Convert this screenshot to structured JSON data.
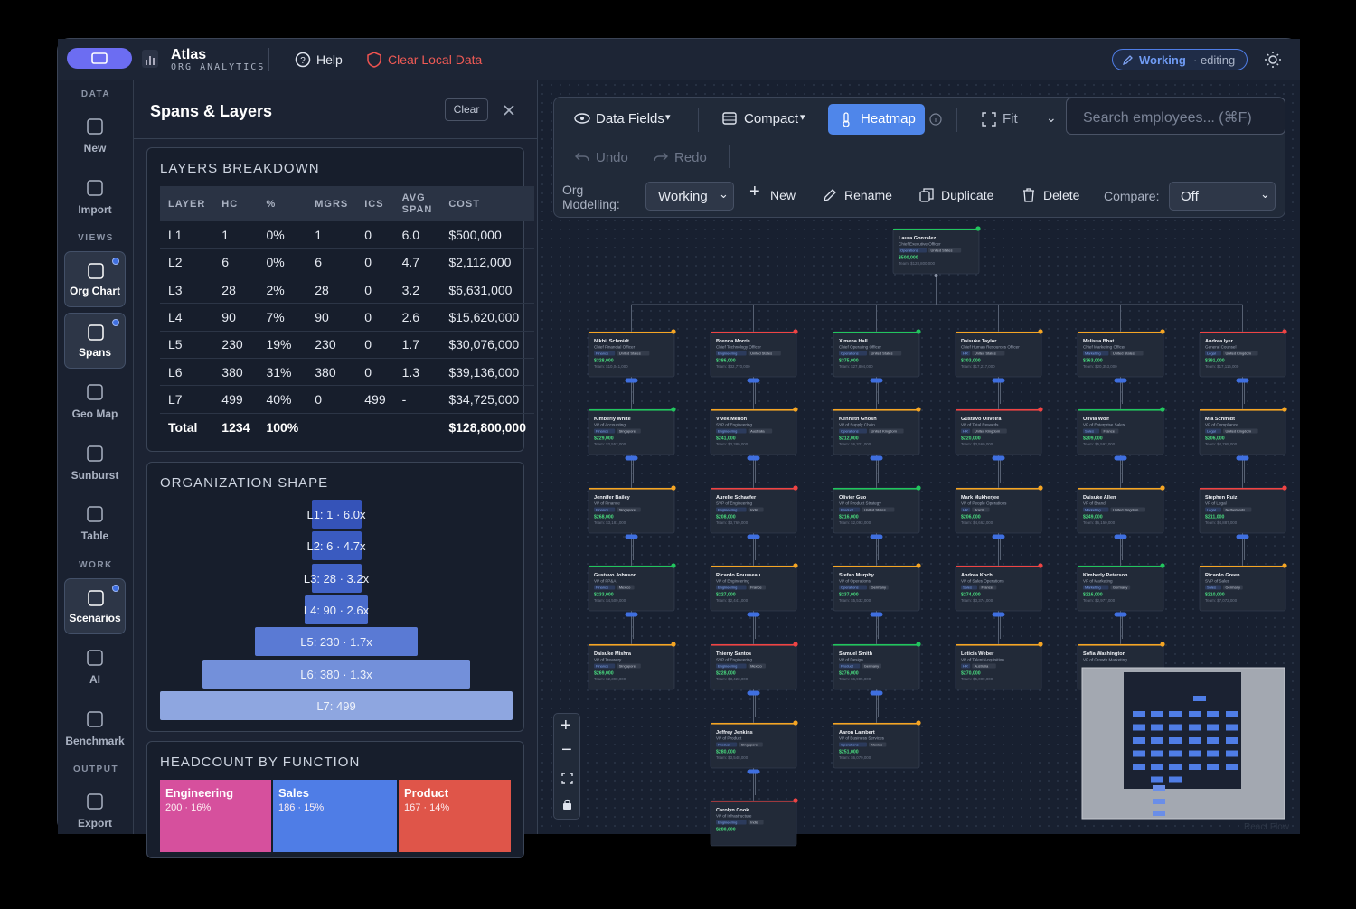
{
  "header": {
    "brand": "Atlas",
    "subtitle": "ORG ANALYTICS",
    "help": "Help",
    "clear_data": "Clear Local Data",
    "status": "Working",
    "status_note": "· editing"
  },
  "nav": [
    {
      "label": "DATA",
      "items": [
        {
          "label": "New",
          "active": false
        },
        {
          "label": "Import",
          "active": false
        }
      ]
    },
    {
      "label": "VIEWS",
      "items": [
        {
          "label": "Org Chart",
          "active": true
        },
        {
          "label": "Spans",
          "active": true
        },
        {
          "label": "Geo Map",
          "active": false
        },
        {
          "label": "Sunburst",
          "active": false
        },
        {
          "label": "Table",
          "active": false
        }
      ]
    },
    {
      "label": "WORK",
      "items": [
        {
          "label": "Scenarios",
          "active": true
        },
        {
          "label": "AI",
          "active": false
        },
        {
          "label": "Benchmark",
          "active": false
        }
      ]
    },
    {
      "label": "OUTPUT",
      "items": [
        {
          "label": "Export",
          "active": false
        }
      ]
    }
  ],
  "panel": {
    "title": "Spans & Layers",
    "clear": "Clear"
  },
  "layers": {
    "title": "LAYERS BREAKDOWN",
    "columns": [
      "LAYER",
      "HC",
      "%",
      "MGRS",
      "ICS",
      "AVG SPAN",
      "COST"
    ],
    "rows": [
      [
        "L1",
        "1",
        "0%",
        "1",
        "0",
        "6.0",
        "$500,000"
      ],
      [
        "L2",
        "6",
        "0%",
        "6",
        "0",
        "4.7",
        "$2,112,000"
      ],
      [
        "L3",
        "28",
        "2%",
        "28",
        "0",
        "3.2",
        "$6,631,000"
      ],
      [
        "L4",
        "90",
        "7%",
        "90",
        "0",
        "2.6",
        "$15,620,000"
      ],
      [
        "L5",
        "230",
        "19%",
        "230",
        "0",
        "1.7",
        "$30,076,000"
      ],
      [
        "L6",
        "380",
        "31%",
        "380",
        "0",
        "1.3",
        "$39,136,000"
      ],
      [
        "L7",
        "499",
        "40%",
        "0",
        "499",
        "-",
        "$34,725,000"
      ]
    ],
    "total": [
      "Total",
      "1234",
      "100%",
      "",
      "",
      "",
      "$128,800,000"
    ]
  },
  "shape": {
    "title": "ORGANIZATION SHAPE",
    "bars": [
      "L1: 1 · 6.0x",
      "L2: 6 · 4.7x",
      "L3: 28 · 3.2x",
      "L4: 90 · 2.6x",
      "L5: 230 · 1.7x",
      "L6: 380 · 1.3x",
      "L7: 499"
    ]
  },
  "functions": {
    "title": "HEADCOUNT BY FUNCTION",
    "items": [
      {
        "name": "Engineering",
        "label": "200 · 16%",
        "color": "#d6509d"
      },
      {
        "name": "Sales",
        "label": "186 · 15%",
        "color": "#4f7de6"
      },
      {
        "name": "Product",
        "label": "167 · 14%",
        "color": "#df5549"
      }
    ]
  },
  "toolbar": {
    "data_fields": "Data Fields",
    "compact": "Compact",
    "heatmap": "Heatmap",
    "fit": "Fit",
    "search": "Search employees... (⌘F)",
    "undo": "Undo",
    "redo": "Redo",
    "modelling": "Org Modelling:",
    "mode": "Working",
    "new": "New",
    "rename": "Rename",
    "duplicate": "Duplicate",
    "delete": "Delete",
    "compare": "Compare:",
    "compare_value": "Off"
  },
  "org": {
    "root": {
      "name": "Laura Gonzalez",
      "title": "Chief Executive Officer",
      "dept": "Operations",
      "loc": "United States",
      "salary": "$500,000",
      "team": "Team: $128,800,000"
    },
    "columns": [
      [
        {
          "name": "Nikhil Schmidt",
          "title": "Chief Financial Officer",
          "dept": "Finance",
          "loc": "United States",
          "salary": "$328,000",
          "team": "Team: $10,041,000"
        },
        {
          "name": "Kimberly White",
          "title": "VP of Accounting",
          "dept": "Finance",
          "loc": "Singapore",
          "salary": "$229,000",
          "team": "Team: $2,552,000"
        },
        {
          "name": "Jennifer Bailey",
          "title": "VP of Finance",
          "dept": "Finance",
          "loc": "Singapore",
          "salary": "$268,000",
          "team": "Team: $3,181,000"
        },
        {
          "name": "Gustavo Johnson",
          "title": "VP of FP&A",
          "dept": "Finance",
          "loc": "Mexico",
          "salary": "$233,000",
          "team": "Team: $4,509,000"
        },
        {
          "name": "Daisuke Mishra",
          "title": "VP of Treasury",
          "dept": "Finance",
          "loc": "Singapore",
          "salary": "$269,000",
          "team": "Team: $2,390,000"
        }
      ],
      [
        {
          "name": "Brenda Morris",
          "title": "Chief Technology Officer",
          "dept": "Engineering",
          "loc": "United States",
          "salary": "$386,000",
          "team": "Team: $32,770,000"
        },
        {
          "name": "Vivek Menon",
          "title": "SVP of Engineering",
          "dept": "Engineering",
          "loc": "Australia",
          "salary": "$241,000",
          "team": "Team: $3,389,000"
        },
        {
          "name": "Aurelie Schaefer",
          "title": "SVP of Engineering",
          "dept": "Engineering",
          "loc": "India",
          "salary": "$208,000",
          "team": "Team: $3,769,000"
        },
        {
          "name": "Ricardo Rousseau",
          "title": "VP of Engineering",
          "dept": "Engineering",
          "loc": "France",
          "salary": "$227,000",
          "team": "Team: $2,441,000"
        },
        {
          "name": "Thierry Santos",
          "title": "SVP of Engineering",
          "dept": "Engineering",
          "loc": "Mexico",
          "salary": "$228,000",
          "team": "Team: $3,423,000"
        },
        {
          "name": "Jeffrey Jenkins",
          "title": "VP of Product",
          "dept": "Product",
          "loc": "Singapore",
          "salary": "$280,000",
          "team": "Team: $3,548,000"
        },
        {
          "name": "Carolyn Cook",
          "title": "VP of Infrastructure",
          "dept": "Engineering",
          "loc": "India",
          "salary": "$280,000"
        }
      ],
      [
        {
          "name": "Ximena Hall",
          "title": "Chief Operating Officer",
          "dept": "Operations",
          "loc": "United States",
          "salary": "$375,000",
          "team": "Team: $27,804,000"
        },
        {
          "name": "Kenneth Ghosh",
          "title": "VP of Supply Chain",
          "dept": "Operations",
          "loc": "United Kingdom",
          "salary": "$212,000",
          "team": "Team: $6,321,000"
        },
        {
          "name": "Olivier Guo",
          "title": "VP of Product Strategy",
          "dept": "Product",
          "loc": "United States",
          "salary": "$216,000",
          "team": "Team: $2,093,000"
        },
        {
          "name": "Stefan Murphy",
          "title": "VP of Operations",
          "dept": "Operations",
          "loc": "Germany",
          "salary": "$237,000",
          "team": "Team: $5,532,000"
        },
        {
          "name": "Samuel Smith",
          "title": "VP of Design",
          "dept": "Product",
          "loc": "Germany",
          "salary": "$276,000",
          "team": "Team: $6,905,000"
        },
        {
          "name": "Aaron Lambert",
          "title": "VP of Business Services",
          "dept": "Operations",
          "loc": "Mexico",
          "salary": "$251,000",
          "team": "Team: $6,079,000"
        }
      ],
      [
        {
          "name": "Daisuke Taylor",
          "title": "Chief Human Resources Officer",
          "dept": "HR",
          "loc": "United States",
          "salary": "$303,000",
          "team": "Team: $17,217,000"
        },
        {
          "name": "Gustavo Oliveira",
          "title": "VP of Total Rewards",
          "dept": "HR",
          "loc": "United Kingdom",
          "salary": "$220,000",
          "team": "Team: $3,569,000"
        },
        {
          "name": "Mark Mukherjee",
          "title": "VP of People Operations",
          "dept": "HR",
          "loc": "Brazil",
          "salary": "$206,000",
          "team": "Team: $4,662,000"
        },
        {
          "name": "Andrea Koch",
          "title": "VP of Sales Operations",
          "dept": "Sales",
          "loc": "France",
          "salary": "$274,000",
          "team": "Team: $3,374,000"
        },
        {
          "name": "Leticia Weber",
          "title": "VP of Talent Acquisition",
          "dept": "HR",
          "loc": "Australia",
          "salary": "$270,000",
          "team": "Team: $5,009,000"
        }
      ],
      [
        {
          "name": "Melissa Bhat",
          "title": "Chief Marketing Officer",
          "dept": "Marketing",
          "loc": "United States",
          "salary": "$363,000",
          "team": "Team: $20,353,000"
        },
        {
          "name": "Olivia Wolf",
          "title": "VP of Enterprise Sales",
          "dept": "Sales",
          "loc": "France",
          "salary": "$209,000",
          "team": "Team: $5,592,000"
        },
        {
          "name": "Daisuke Allen",
          "title": "VP of Brand",
          "dept": "Marketing",
          "loc": "United Kingdom",
          "salary": "$249,000",
          "team": "Team: $6,150,000"
        },
        {
          "name": "Kimberly Peterson",
          "title": "VP of Marketing",
          "dept": "Marketing",
          "loc": "Germany",
          "salary": "$216,000",
          "team": "Team: $2,977,000"
        },
        {
          "name": "Sofia Washington",
          "title": "VP of Growth Marketing"
        }
      ],
      [
        {
          "name": "Andrea Iyer",
          "title": "General Counsel",
          "dept": "Legal",
          "loc": "United Kingdom",
          "salary": "$391,000",
          "team": "Team: $17,116,000"
        },
        {
          "name": "Mia Schmidt",
          "title": "VP of Compliance",
          "dept": "Legal",
          "loc": "United Kingdom",
          "salary": "$206,000",
          "team": "Team: $4,765,000"
        },
        {
          "name": "Stephen Ruiz",
          "title": "VP of Legal",
          "dept": "Legal",
          "loc": "Netherlands",
          "salary": "$211,000",
          "team": "Team: $4,887,000"
        },
        {
          "name": "Ricardo Green",
          "title": "SVP of Sales",
          "dept": "Sales",
          "loc": "Germany",
          "salary": "$210,000",
          "team": "Team: $7,072,000"
        }
      ]
    ]
  },
  "attribution": "React Flow"
}
